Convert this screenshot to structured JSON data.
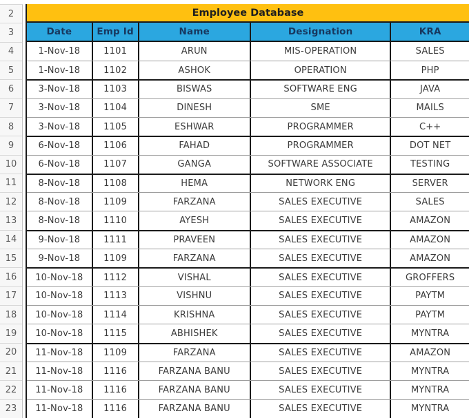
{
  "sheet": {
    "title": "Employee Database",
    "title_row_number": "2",
    "header_row_number": "3",
    "headers": [
      "Date",
      "Emp Id",
      "Name",
      "Designation",
      "KRA"
    ],
    "rows": [
      {
        "n": "4",
        "date": "1-Nov-18",
        "emp_id": "1101",
        "name": "ARUN",
        "designation": "MIS-OPERATION",
        "kra": "SALES",
        "group_start": false
      },
      {
        "n": "5",
        "date": "1-Nov-18",
        "emp_id": "1102",
        "name": "ASHOK",
        "designation": "OPERATION",
        "kra": "PHP",
        "group_start": false
      },
      {
        "n": "6",
        "date": "3-Nov-18",
        "emp_id": "1103",
        "name": "BISWAS",
        "designation": "SOFTWARE ENG",
        "kra": "JAVA",
        "group_start": true
      },
      {
        "n": "7",
        "date": "3-Nov-18",
        "emp_id": "1104",
        "name": "DINESH",
        "designation": "SME",
        "kra": "MAILS",
        "group_start": false
      },
      {
        "n": "8",
        "date": "3-Nov-18",
        "emp_id": "1105",
        "name": "ESHWAR",
        "designation": "PROGRAMMER",
        "kra": "C++",
        "group_start": false
      },
      {
        "n": "9",
        "date": "6-Nov-18",
        "emp_id": "1106",
        "name": "FAHAD",
        "designation": "PROGRAMMER",
        "kra": "DOT NET",
        "group_start": true
      },
      {
        "n": "10",
        "date": "6-Nov-18",
        "emp_id": "1107",
        "name": "GANGA",
        "designation": "SOFTWARE ASSOCIATE",
        "kra": "TESTING",
        "group_start": false
      },
      {
        "n": "11",
        "date": "8-Nov-18",
        "emp_id": "1108",
        "name": "HEMA",
        "designation": "NETWORK ENG",
        "kra": "SERVER",
        "group_start": true
      },
      {
        "n": "12",
        "date": "8-Nov-18",
        "emp_id": "1109",
        "name": "FARZANA",
        "designation": "SALES EXECUTIVE",
        "kra": "SALES",
        "group_start": false
      },
      {
        "n": "13",
        "date": "8-Nov-18",
        "emp_id": "1110",
        "name": "AYESH",
        "designation": "SALES EXECUTIVE",
        "kra": "AMAZON",
        "group_start": false
      },
      {
        "n": "14",
        "date": "9-Nov-18",
        "emp_id": "1111",
        "name": "PRAVEEN",
        "designation": "SALES EXECUTIVE",
        "kra": "AMAZON",
        "group_start": true
      },
      {
        "n": "15",
        "date": "9-Nov-18",
        "emp_id": "1109",
        "name": "FARZANA",
        "designation": "SALES EXECUTIVE",
        "kra": "AMAZON",
        "group_start": false
      },
      {
        "n": "16",
        "date": "10-Nov-18",
        "emp_id": "1112",
        "name": "VISHAL",
        "designation": "SALES EXECUTIVE",
        "kra": "GROFFERS",
        "group_start": true
      },
      {
        "n": "17",
        "date": "10-Nov-18",
        "emp_id": "1113",
        "name": "VISHNU",
        "designation": "SALES EXECUTIVE",
        "kra": "PAYTM",
        "group_start": false
      },
      {
        "n": "18",
        "date": "10-Nov-18",
        "emp_id": "1114",
        "name": "KRISHNA",
        "designation": "SALES EXECUTIVE",
        "kra": "PAYTM",
        "group_start": false
      },
      {
        "n": "19",
        "date": "10-Nov-18",
        "emp_id": "1115",
        "name": "ABHISHEK",
        "designation": "SALES EXECUTIVE",
        "kra": "MYNTRA",
        "group_start": false
      },
      {
        "n": "20",
        "date": "11-Nov-18",
        "emp_id": "1109",
        "name": "FARZANA",
        "designation": "SALES EXECUTIVE",
        "kra": "AMAZON",
        "group_start": true
      },
      {
        "n": "21",
        "date": "11-Nov-18",
        "emp_id": "1116",
        "name": "FARZANA BANU",
        "designation": "SALES EXECUTIVE",
        "kra": "MYNTRA",
        "group_start": false
      },
      {
        "n": "22",
        "date": "11-Nov-18",
        "emp_id": "1116",
        "name": "FARZANA BANU",
        "designation": "SALES EXECUTIVE",
        "kra": "MYNTRA",
        "group_start": false
      },
      {
        "n": "23",
        "date": "11-Nov-18",
        "emp_id": "1116",
        "name": "FARZANA BANU",
        "designation": "SALES EXECUTIVE",
        "kra": "MYNTRA",
        "group_start": false
      }
    ],
    "colors": {
      "title_bg": "#FFC010",
      "header_bg": "#2BA7E0",
      "header_text": "#17375E",
      "body_text": "#3B3B3B",
      "grid_black": "#1A1A1A",
      "grid_gray": "#9E9E9E"
    }
  }
}
